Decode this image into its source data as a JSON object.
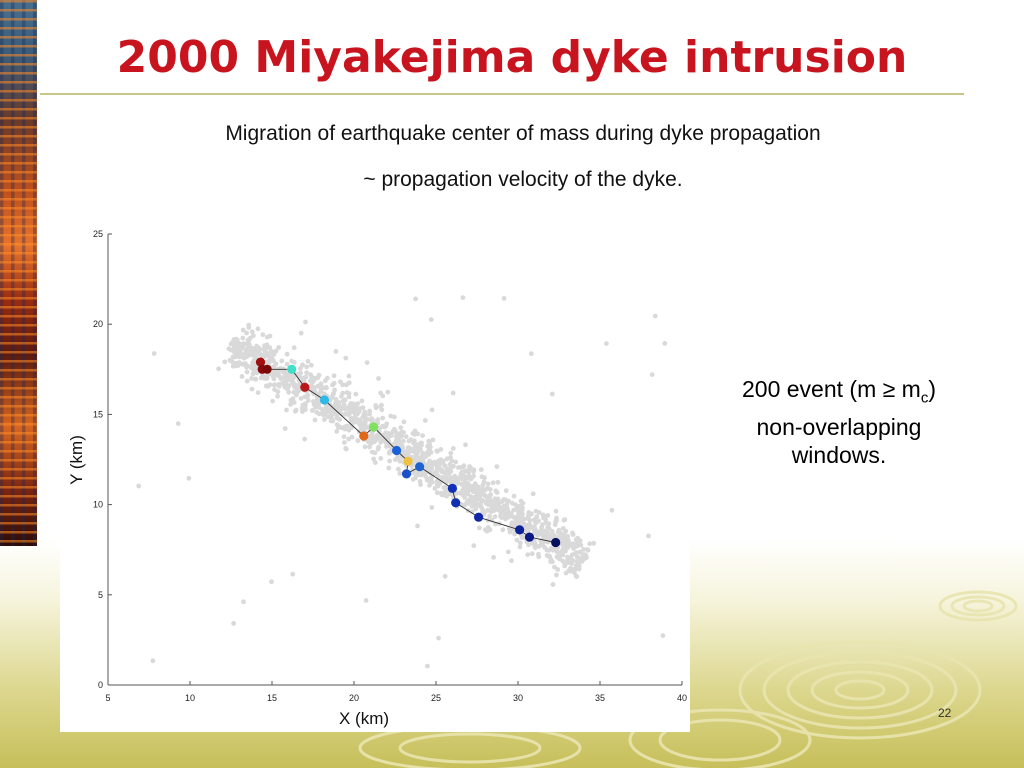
{
  "slide": {
    "title": "2000 Miyakejima dyke intrusion",
    "subtitle_line1": "Migration of earthquake center of mass during dyke propagation",
    "subtitle_line2": "~ propagation velocity of the dyke.",
    "annotation_line1_prefix": "200 event (m ≥ m",
    "annotation_line1_sub": "c",
    "annotation_line1_suffix": ")",
    "annotation_line2": "non-overlapping",
    "annotation_line3": "windows.",
    "slide_number": "22"
  },
  "colors": {
    "title": "#c8141e",
    "background_points": "#d9d9d9",
    "path_line": "#333333"
  },
  "chart_data": {
    "type": "scatter",
    "title": "",
    "xlabel": "X (km)",
    "ylabel": "Y (km)",
    "xlim": [
      5,
      40
    ],
    "ylim": [
      0,
      25
    ],
    "xticks": [
      5,
      10,
      15,
      20,
      25,
      30,
      35,
      40
    ],
    "yticks": [
      0,
      5,
      10,
      15,
      20,
      25
    ],
    "grid": false,
    "legend": "none",
    "series": [
      {
        "kind": "center-of-mass-path",
        "points": [
          {
            "x": 14.3,
            "y": 17.9,
            "color": "#a01010"
          },
          {
            "x": 14.4,
            "y": 17.5,
            "color": "#8a0a0a"
          },
          {
            "x": 14.7,
            "y": 17.5,
            "color": "#7a0808"
          },
          {
            "x": 16.2,
            "y": 17.5,
            "color": "#40e0c8"
          },
          {
            "x": 17.0,
            "y": 16.5,
            "color": "#b81818"
          },
          {
            "x": 18.2,
            "y": 15.8,
            "color": "#30b8e8"
          },
          {
            "x": 20.6,
            "y": 13.8,
            "color": "#e06818"
          },
          {
            "x": 21.2,
            "y": 14.3,
            "color": "#80e060"
          },
          {
            "x": 22.6,
            "y": 13.0,
            "color": "#1a60d8"
          },
          {
            "x": 23.3,
            "y": 12.4,
            "color": "#f0c040"
          },
          {
            "x": 23.2,
            "y": 11.7,
            "color": "#1a50c8"
          },
          {
            "x": 24.0,
            "y": 12.1,
            "color": "#1e64d0"
          },
          {
            "x": 26.0,
            "y": 10.9,
            "color": "#1030b8"
          },
          {
            "x": 26.2,
            "y": 10.1,
            "color": "#1030b0"
          },
          {
            "x": 27.6,
            "y": 9.3,
            "color": "#1028a8"
          },
          {
            "x": 30.1,
            "y": 8.6,
            "color": "#0c2098"
          },
          {
            "x": 30.7,
            "y": 8.2,
            "color": "#0a1888"
          },
          {
            "x": 32.3,
            "y": 7.9,
            "color": "#060e60"
          }
        ]
      }
    ]
  }
}
